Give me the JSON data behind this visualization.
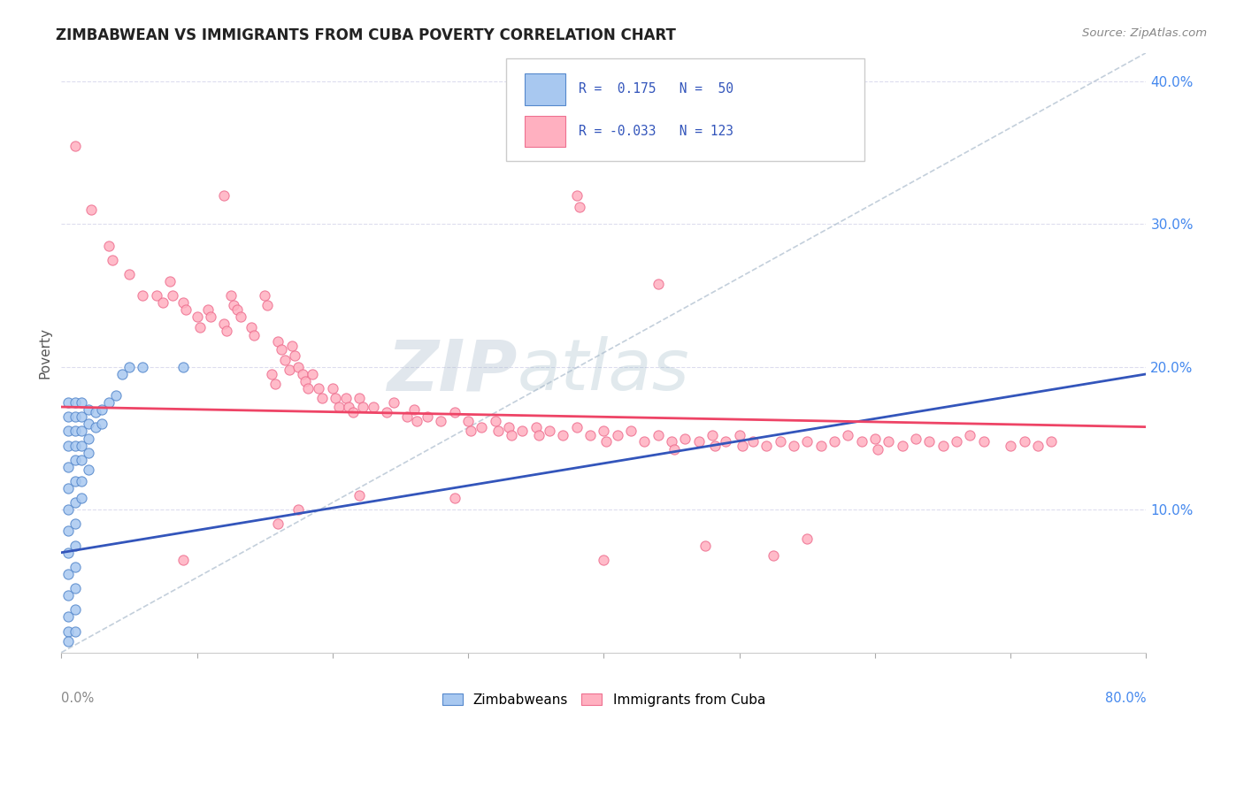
{
  "title": "ZIMBABWEAN VS IMMIGRANTS FROM CUBA POVERTY CORRELATION CHART",
  "source": "Source: ZipAtlas.com",
  "ylabel": "Poverty",
  "xlim": [
    0.0,
    0.8
  ],
  "ylim": [
    0.0,
    0.42
  ],
  "yticks": [
    0.1,
    0.2,
    0.3,
    0.4
  ],
  "ytick_labels": [
    "10.0%",
    "20.0%",
    "30.0%",
    "40.0%"
  ],
  "color_zim_fill": "#a8c8f0",
  "color_zim_edge": "#5588cc",
  "color_cuba_fill": "#ffb0c0",
  "color_cuba_edge": "#ee7090",
  "trendline_zim": "#3355bb",
  "trendline_cuba": "#ee4466",
  "diag_color": "#aabbcc",
  "background": "#ffffff",
  "grid_color": "#ddddee",
  "watermark_color": "#ccddeeff",
  "zim_points": [
    [
      0.005,
      0.175
    ],
    [
      0.005,
      0.165
    ],
    [
      0.005,
      0.155
    ],
    [
      0.005,
      0.145
    ],
    [
      0.005,
      0.13
    ],
    [
      0.005,
      0.115
    ],
    [
      0.005,
      0.1
    ],
    [
      0.005,
      0.085
    ],
    [
      0.005,
      0.07
    ],
    [
      0.005,
      0.055
    ],
    [
      0.005,
      0.04
    ],
    [
      0.005,
      0.025
    ],
    [
      0.005,
      0.015
    ],
    [
      0.005,
      0.008
    ],
    [
      0.01,
      0.175
    ],
    [
      0.01,
      0.165
    ],
    [
      0.01,
      0.155
    ],
    [
      0.01,
      0.145
    ],
    [
      0.01,
      0.135
    ],
    [
      0.01,
      0.12
    ],
    [
      0.01,
      0.105
    ],
    [
      0.01,
      0.09
    ],
    [
      0.01,
      0.075
    ],
    [
      0.01,
      0.06
    ],
    [
      0.01,
      0.045
    ],
    [
      0.01,
      0.03
    ],
    [
      0.01,
      0.015
    ],
    [
      0.015,
      0.175
    ],
    [
      0.015,
      0.165
    ],
    [
      0.015,
      0.155
    ],
    [
      0.015,
      0.145
    ],
    [
      0.015,
      0.135
    ],
    [
      0.015,
      0.12
    ],
    [
      0.015,
      0.108
    ],
    [
      0.02,
      0.17
    ],
    [
      0.02,
      0.16
    ],
    [
      0.02,
      0.15
    ],
    [
      0.02,
      0.14
    ],
    [
      0.02,
      0.128
    ],
    [
      0.025,
      0.168
    ],
    [
      0.025,
      0.158
    ],
    [
      0.03,
      0.17
    ],
    [
      0.03,
      0.16
    ],
    [
      0.035,
      0.175
    ],
    [
      0.04,
      0.18
    ],
    [
      0.045,
      0.195
    ],
    [
      0.05,
      0.2
    ],
    [
      0.06,
      0.2
    ],
    [
      0.09,
      0.2
    ]
  ],
  "cuba_points": [
    [
      0.01,
      0.355
    ],
    [
      0.022,
      0.31
    ],
    [
      0.035,
      0.285
    ],
    [
      0.038,
      0.275
    ],
    [
      0.05,
      0.265
    ],
    [
      0.06,
      0.25
    ],
    [
      0.07,
      0.25
    ],
    [
      0.075,
      0.245
    ],
    [
      0.08,
      0.26
    ],
    [
      0.082,
      0.25
    ],
    [
      0.09,
      0.245
    ],
    [
      0.092,
      0.24
    ],
    [
      0.1,
      0.235
    ],
    [
      0.102,
      0.228
    ],
    [
      0.108,
      0.24
    ],
    [
      0.11,
      0.235
    ],
    [
      0.12,
      0.23
    ],
    [
      0.122,
      0.225
    ],
    [
      0.125,
      0.25
    ],
    [
      0.127,
      0.243
    ],
    [
      0.13,
      0.24
    ],
    [
      0.132,
      0.235
    ],
    [
      0.14,
      0.228
    ],
    [
      0.142,
      0.222
    ],
    [
      0.15,
      0.25
    ],
    [
      0.152,
      0.243
    ],
    [
      0.155,
      0.195
    ],
    [
      0.158,
      0.188
    ],
    [
      0.16,
      0.218
    ],
    [
      0.162,
      0.212
    ],
    [
      0.165,
      0.205
    ],
    [
      0.168,
      0.198
    ],
    [
      0.17,
      0.215
    ],
    [
      0.172,
      0.208
    ],
    [
      0.175,
      0.2
    ],
    [
      0.178,
      0.195
    ],
    [
      0.18,
      0.19
    ],
    [
      0.182,
      0.185
    ],
    [
      0.185,
      0.195
    ],
    [
      0.19,
      0.185
    ],
    [
      0.192,
      0.178
    ],
    [
      0.2,
      0.185
    ],
    [
      0.202,
      0.178
    ],
    [
      0.205,
      0.172
    ],
    [
      0.21,
      0.178
    ],
    [
      0.212,
      0.172
    ],
    [
      0.215,
      0.168
    ],
    [
      0.22,
      0.178
    ],
    [
      0.222,
      0.172
    ],
    [
      0.23,
      0.172
    ],
    [
      0.24,
      0.168
    ],
    [
      0.245,
      0.175
    ],
    [
      0.255,
      0.165
    ],
    [
      0.26,
      0.17
    ],
    [
      0.262,
      0.162
    ],
    [
      0.27,
      0.165
    ],
    [
      0.28,
      0.162
    ],
    [
      0.29,
      0.168
    ],
    [
      0.3,
      0.162
    ],
    [
      0.302,
      0.155
    ],
    [
      0.31,
      0.158
    ],
    [
      0.32,
      0.162
    ],
    [
      0.322,
      0.155
    ],
    [
      0.33,
      0.158
    ],
    [
      0.332,
      0.152
    ],
    [
      0.34,
      0.155
    ],
    [
      0.35,
      0.158
    ],
    [
      0.352,
      0.152
    ],
    [
      0.36,
      0.155
    ],
    [
      0.37,
      0.152
    ],
    [
      0.38,
      0.158
    ],
    [
      0.39,
      0.152
    ],
    [
      0.4,
      0.155
    ],
    [
      0.402,
      0.148
    ],
    [
      0.41,
      0.152
    ],
    [
      0.42,
      0.155
    ],
    [
      0.43,
      0.148
    ],
    [
      0.44,
      0.152
    ],
    [
      0.45,
      0.148
    ],
    [
      0.452,
      0.142
    ],
    [
      0.46,
      0.15
    ],
    [
      0.47,
      0.148
    ],
    [
      0.48,
      0.152
    ],
    [
      0.482,
      0.145
    ],
    [
      0.49,
      0.148
    ],
    [
      0.5,
      0.152
    ],
    [
      0.502,
      0.145
    ],
    [
      0.51,
      0.148
    ],
    [
      0.52,
      0.145
    ],
    [
      0.53,
      0.148
    ],
    [
      0.54,
      0.145
    ],
    [
      0.55,
      0.148
    ],
    [
      0.56,
      0.145
    ],
    [
      0.57,
      0.148
    ],
    [
      0.58,
      0.152
    ],
    [
      0.59,
      0.148
    ],
    [
      0.6,
      0.15
    ],
    [
      0.602,
      0.142
    ],
    [
      0.61,
      0.148
    ],
    [
      0.62,
      0.145
    ],
    [
      0.63,
      0.15
    ],
    [
      0.64,
      0.148
    ],
    [
      0.65,
      0.145
    ],
    [
      0.66,
      0.148
    ],
    [
      0.67,
      0.152
    ],
    [
      0.68,
      0.148
    ],
    [
      0.7,
      0.145
    ],
    [
      0.71,
      0.148
    ],
    [
      0.72,
      0.145
    ],
    [
      0.73,
      0.148
    ],
    [
      0.38,
      0.32
    ],
    [
      0.382,
      0.312
    ],
    [
      0.12,
      0.32
    ],
    [
      0.44,
      0.258
    ],
    [
      0.4,
      0.065
    ],
    [
      0.475,
      0.075
    ],
    [
      0.525,
      0.068
    ],
    [
      0.16,
      0.09
    ],
    [
      0.09,
      0.065
    ],
    [
      0.55,
      0.08
    ],
    [
      0.175,
      0.1
    ],
    [
      0.22,
      0.11
    ],
    [
      0.29,
      0.108
    ]
  ],
  "zim_trend_x": [
    0.0,
    0.8
  ],
  "zim_trend_y": [
    0.07,
    0.195
  ],
  "cuba_trend_x": [
    0.0,
    0.8
  ],
  "cuba_trend_y": [
    0.172,
    0.158
  ]
}
